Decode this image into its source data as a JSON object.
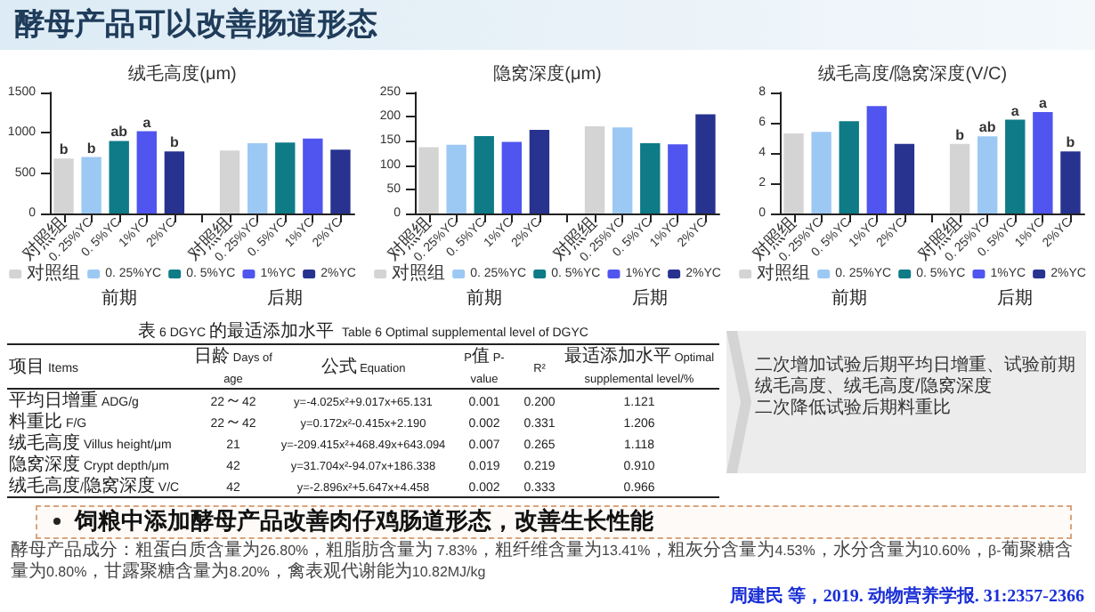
{
  "chart_data": [
    {
      "type": "other",
      "title": "酵母产品可以改善肠道形态",
      "annotations": [
        "二次增加试验后期平均日增重、试验前期绒毛高度、绒毛高度/隐窝深度",
        "二次降低试验后期料重比",
        "饲粮中添加酵母产品改善肉仔鸡肠道形态，改善生长性能",
        "酵母产品成分：粗蛋白质含量为26.80%，粗脂肪含量为 7.83%，粗纤维含量为13.41%，粗灰分含量为4.53%，水分含量为10.60%，β-葡聚糖含量为0.80%，甘露聚糖含量为8.20%，禽表观代谢能为10.82MJ/kg",
        "周建民 等，2019. 动物营养学报. 31:2357-2366"
      ]
    },
    {
      "type": "bar",
      "title": "绒毛高度(μm)",
      "categories": [
        "对照组",
        "0. 25%YC",
        "0. 5%YC",
        "1%YC",
        "2%YC",
        null,
        "对照组",
        "0. 25%YC",
        "0. 5%YC",
        "1%YC",
        "2%YC"
      ],
      "series": [
        {
          "name": "对照组",
          "color": "#d4d4d4",
          "values": [
            680,
            null,
            null,
            null,
            null,
            null,
            780,
            null,
            null,
            null,
            null
          ],
          "value_labels": [
            "b",
            null,
            null,
            null,
            null,
            null,
            null,
            null,
            null,
            null,
            null
          ]
        },
        {
          "name": "0. 25%YC",
          "color": "#9cc8f4",
          "values": [
            null,
            700,
            null,
            null,
            null,
            null,
            null,
            870,
            null,
            null,
            null
          ],
          "value_labels": [
            null,
            "b",
            null,
            null,
            null,
            null,
            null,
            null,
            null,
            null,
            null
          ]
        },
        {
          "name": "0. 5%YC",
          "color": "#0e7b87",
          "values": [
            null,
            null,
            900,
            null,
            null,
            null,
            null,
            null,
            880,
            null,
            null
          ],
          "value_labels": [
            null,
            null,
            "ab",
            null,
            null,
            null,
            null,
            null,
            null,
            null,
            null
          ]
        },
        {
          "name": "1%YC",
          "color": "#4f55ee",
          "values": [
            null,
            null,
            null,
            1020,
            null,
            null,
            null,
            null,
            null,
            930,
            null
          ],
          "value_labels": [
            null,
            null,
            null,
            "a",
            null,
            null,
            null,
            null,
            null,
            null,
            null
          ]
        },
        {
          "name": "2%YC",
          "color": "#27338f",
          "values": [
            null,
            null,
            null,
            null,
            770,
            null,
            null,
            null,
            null,
            null,
            790
          ],
          "value_labels": [
            null,
            null,
            null,
            null,
            "b",
            null,
            null,
            null,
            null,
            null,
            null
          ]
        }
      ],
      "ylim": [
        0,
        1500
      ],
      "yticks": [
        0,
        500,
        1000,
        1500
      ],
      "legend": "bottom",
      "annotations": [
        "前期",
        "后期"
      ]
    },
    {
      "type": "bar",
      "title": "隐窝深度(μm)",
      "categories": [
        "对照组",
        "0. 25%YC",
        "0. 5%YC",
        "1%YC",
        "2%YC",
        null,
        "对照组",
        "0. 25%YC",
        "0. 5%YC",
        "1%YC",
        "2%YC"
      ],
      "series": [
        {
          "name": "对照组",
          "color": "#d4d4d4",
          "values": [
            137,
            null,
            null,
            null,
            null,
            null,
            180,
            null,
            null,
            null,
            null
          ]
        },
        {
          "name": "0. 25%YC",
          "color": "#9cc8f4",
          "values": [
            null,
            142,
            null,
            null,
            null,
            null,
            null,
            178,
            null,
            null,
            null
          ]
        },
        {
          "name": "0. 5%YC",
          "color": "#0e7b87",
          "values": [
            null,
            null,
            160,
            null,
            null,
            null,
            null,
            null,
            145,
            null,
            null
          ]
        },
        {
          "name": "1%YC",
          "color": "#4f55ee",
          "values": [
            null,
            null,
            null,
            148,
            null,
            null,
            null,
            null,
            null,
            143,
            null
          ]
        },
        {
          "name": "2%YC",
          "color": "#27338f",
          "values": [
            null,
            null,
            null,
            null,
            173,
            null,
            null,
            null,
            null,
            null,
            205
          ]
        }
      ],
      "ylim": [
        0,
        250
      ],
      "yticks": [
        0,
        50,
        100,
        150,
        200,
        250
      ],
      "legend": "bottom",
      "annotations": [
        "前期",
        "后期"
      ]
    },
    {
      "type": "bar",
      "title": "绒毛高度/隐窝深度(V/C)",
      "categories": [
        "对照组",
        "0. 25%YC",
        "0. 5%YC",
        "1%YC",
        "2%YC",
        null,
        "对照组",
        "0. 25%YC",
        "0. 5%YC",
        "1%YC",
        "2%YC"
      ],
      "series": [
        {
          "name": "对照组",
          "color": "#d4d4d4",
          "values": [
            5.3,
            null,
            null,
            null,
            null,
            null,
            4.6,
            null,
            null,
            null,
            null
          ],
          "value_labels": [
            null,
            null,
            null,
            null,
            null,
            null,
            "b",
            null,
            null,
            null,
            null
          ]
        },
        {
          "name": "0. 25%YC",
          "color": "#9cc8f4",
          "values": [
            null,
            5.4,
            null,
            null,
            null,
            null,
            null,
            5.1,
            null,
            null,
            null
          ],
          "value_labels": [
            null,
            null,
            null,
            null,
            null,
            null,
            null,
            "ab",
            null,
            null,
            null
          ]
        },
        {
          "name": "0. 5%YC",
          "color": "#0e7b87",
          "values": [
            null,
            null,
            6.1,
            null,
            null,
            null,
            null,
            null,
            6.2,
            null,
            null
          ],
          "value_labels": [
            null,
            null,
            null,
            null,
            null,
            null,
            null,
            null,
            "a",
            null,
            null
          ]
        },
        {
          "name": "1%YC",
          "color": "#4f55ee",
          "values": [
            null,
            null,
            null,
            7.1,
            null,
            null,
            null,
            null,
            null,
            6.7,
            null
          ],
          "value_labels": [
            null,
            null,
            null,
            null,
            null,
            null,
            null,
            null,
            null,
            "a",
            null
          ]
        },
        {
          "name": "2%YC",
          "color": "#27338f",
          "values": [
            null,
            null,
            null,
            null,
            4.6,
            null,
            null,
            null,
            null,
            null,
            4.1
          ],
          "value_labels": [
            null,
            null,
            null,
            null,
            null,
            null,
            null,
            null,
            null,
            null,
            "b"
          ]
        }
      ],
      "ylim": [
        0,
        8
      ],
      "yticks": [
        0,
        2,
        4,
        6,
        8
      ],
      "legend": "bottom",
      "annotations": [
        "前期",
        "后期"
      ]
    },
    {
      "type": "other",
      "title": "表 6 DGYC 的最适添加水平",
      "subtitle": "Table 6 Optimal supplemental level of DGYC",
      "ylabel": "项目 Items",
      "categories": [
        "日龄 Days of age",
        "公式 Equation",
        "P值 P-value",
        "R²",
        "最适添加水平 Optimal supplemental level/%"
      ],
      "y_categories": [
        "平均日增重 ADG/g",
        "料重比 F/G",
        "绒毛高度 Villus height/μm",
        "隐窝深度 Crypt depth/μm",
        "绒毛高度/隐窝深度 V/C"
      ],
      "cell_labels": [
        [
          "22～42",
          "y=-4.025x²+9.017x+65.131",
          "0.001",
          "0.200",
          "1.121"
        ],
        [
          "22～42",
          "y=0.172x²-0.415x+2.190",
          "0.002",
          "0.331",
          "1.206"
        ],
        [
          "21",
          "y=-209.415x²+468.49x+643.094",
          "0.007",
          "0.265",
          "1.118"
        ],
        [
          "42",
          "y=31.704x²-94.07x+186.338",
          "0.019",
          "0.219",
          "0.910"
        ],
        [
          "42",
          "y=-2.896x²+5.647x+4.458",
          "0.002",
          "0.333",
          "0.966"
        ]
      ]
    }
  ]
}
